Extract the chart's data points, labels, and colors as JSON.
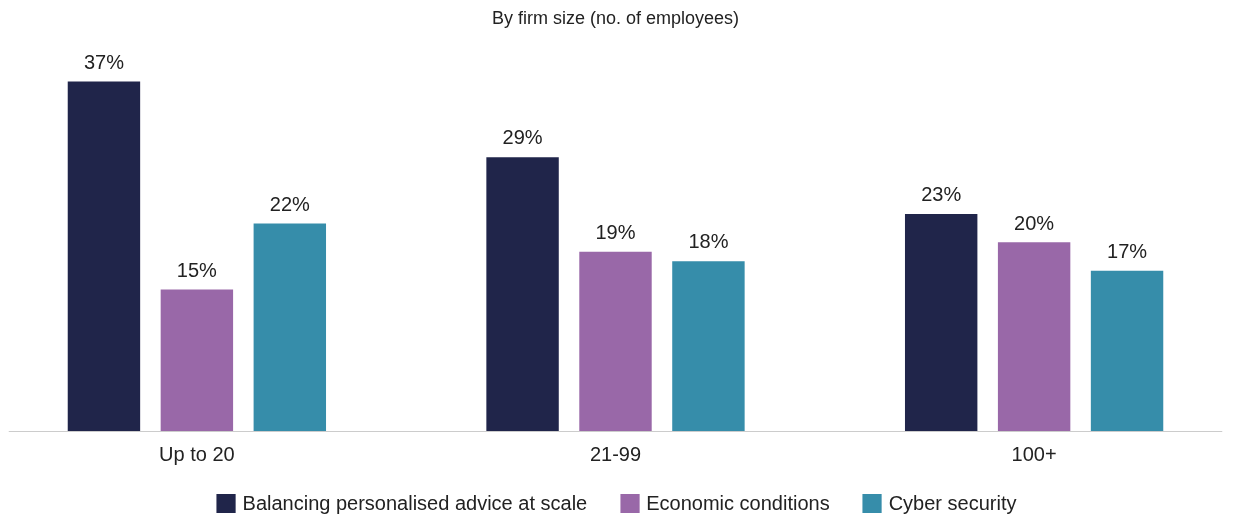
{
  "chart_data": {
    "type": "bar",
    "title": "By firm size (no. of employees)",
    "categories": [
      "Up to 20",
      "21-99",
      "100+"
    ],
    "series": [
      {
        "name": "Balancing personalised advice at scale",
        "color": "#20254a",
        "values": [
          37,
          29,
          23
        ],
        "value_labels": [
          "37%",
          "29%",
          "23%"
        ]
      },
      {
        "name": "Economic conditions",
        "color": "#9968a8",
        "values": [
          15,
          19,
          20
        ],
        "value_labels": [
          "15%",
          "19%",
          "20%"
        ]
      },
      {
        "name": "Cyber security",
        "color": "#368daa",
        "values": [
          22,
          18,
          17
        ],
        "value_labels": [
          "22%",
          "18%",
          "17%"
        ]
      }
    ],
    "legend": "bottom"
  }
}
